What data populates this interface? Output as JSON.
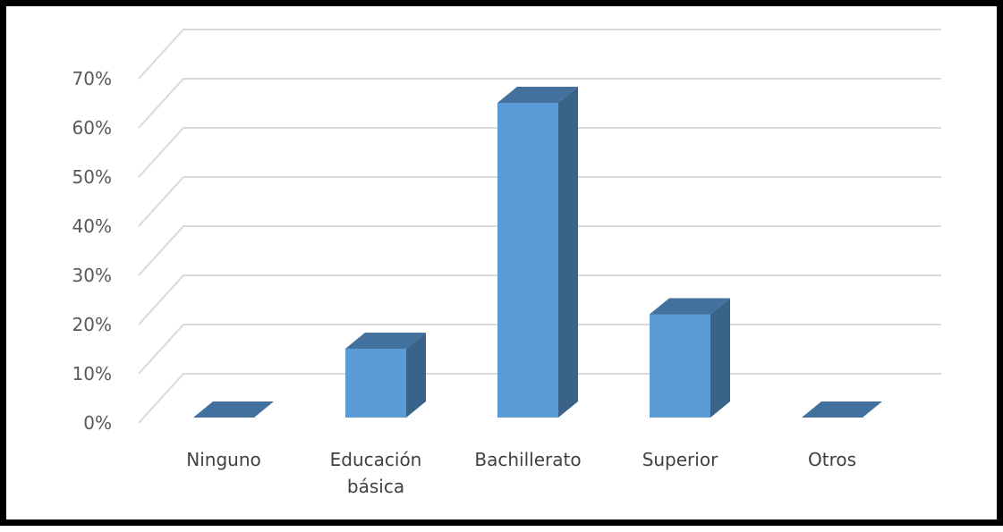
{
  "chart_data": {
    "type": "bar",
    "style": "3d-column",
    "categories": [
      "Ninguno",
      "Educación básica",
      "Bachillerato",
      "Superior",
      "Otros"
    ],
    "category_lines": [
      [
        "Ninguno"
      ],
      [
        "Educación",
        "básica"
      ],
      [
        "Bachillerato"
      ],
      [
        "Superior"
      ],
      [
        "Otros"
      ]
    ],
    "values": [
      0,
      14,
      64,
      21,
      0
    ],
    "unit": "%",
    "ylim": [
      0,
      70
    ],
    "ytick_step": 10,
    "ytick_labels": [
      "0%",
      "10%",
      "20%",
      "30%",
      "40%",
      "50%",
      "60%",
      "70%"
    ],
    "title": "",
    "xlabel": "",
    "ylabel": "",
    "grid": true,
    "legend": "none",
    "colors": {
      "bar_front": "#5b9bd5",
      "bar_side": "#3a6389",
      "bar_top": "#41719c",
      "gridline": "#d9d9d9"
    }
  }
}
